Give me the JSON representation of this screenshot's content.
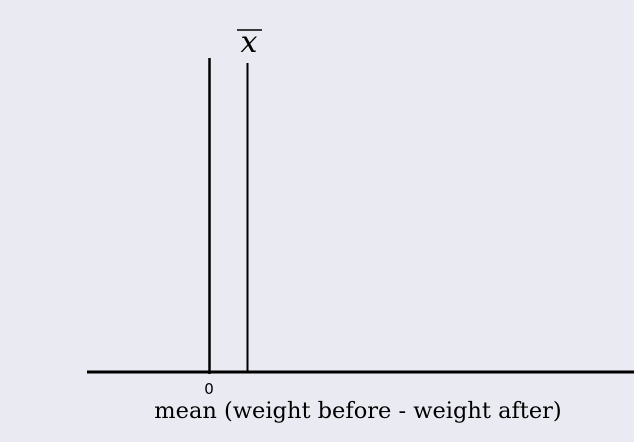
{
  "diagram": {
    "background_color": "#eaeaf2",
    "line_color": "#000000",
    "xlabel": "mean (weight before - weight after)",
    "tick_labels": [
      "0"
    ],
    "marker_label": "x",
    "marker_label_decoration": "overline"
  }
}
